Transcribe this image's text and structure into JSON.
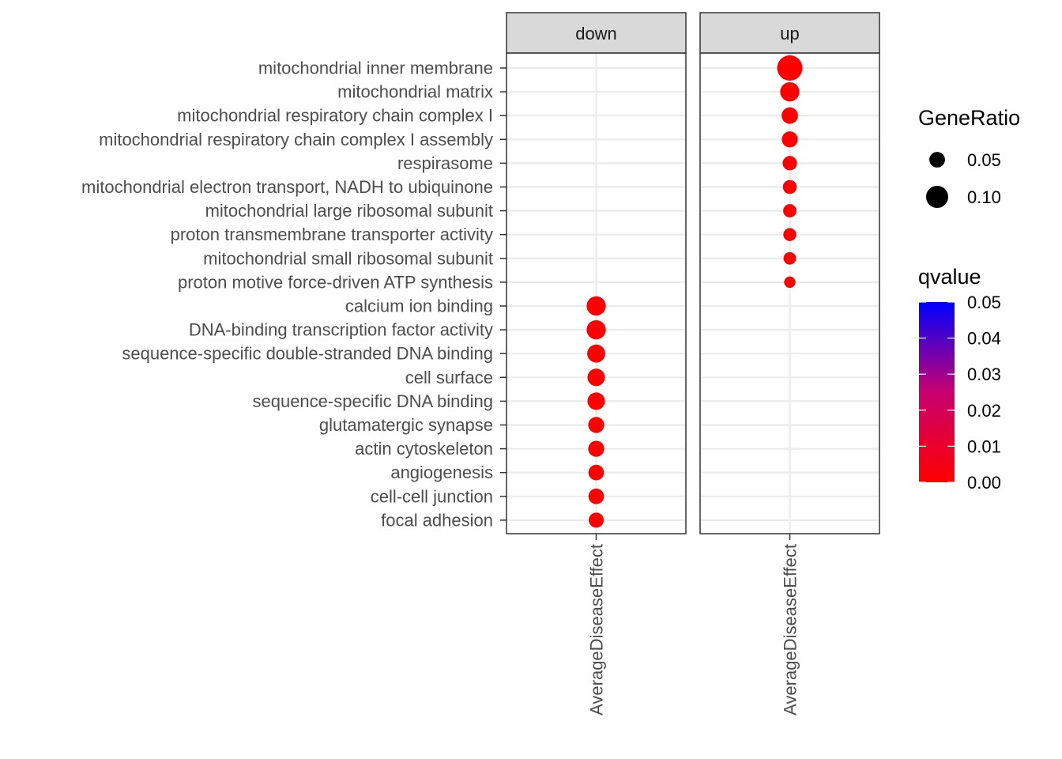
{
  "chart_data": {
    "type": "scatter",
    "facets": [
      "down",
      "up"
    ],
    "x_category": "AverageDiseaseEffect",
    "y_categories": [
      "mitochondrial inner membrane",
      "mitochondrial matrix",
      "mitochondrial respiratory chain complex I",
      "mitochondrial respiratory chain complex I assembly",
      "respirasome",
      "mitochondrial electron transport, NADH to ubiquinone",
      "mitochondrial large ribosomal subunit",
      "proton transmembrane transporter activity",
      "mitochondrial small ribosomal subunit",
      "proton motive force-driven ATP synthesis",
      "calcium ion binding",
      "DNA-binding transcription factor activity",
      "sequence-specific double-stranded DNA binding",
      "cell surface",
      "sequence-specific DNA binding",
      "glutamatergic synapse",
      "actin cytoskeleton",
      "angiogenesis",
      "cell-cell junction",
      "focal adhesion"
    ],
    "points": [
      {
        "facet": "up",
        "term": "mitochondrial inner membrane",
        "gene_ratio": 0.13,
        "qvalue": 0.0
      },
      {
        "facet": "up",
        "term": "mitochondrial matrix",
        "gene_ratio": 0.075,
        "qvalue": 0.0
      },
      {
        "facet": "up",
        "term": "mitochondrial respiratory chain complex I",
        "gene_ratio": 0.055,
        "qvalue": 0.0
      },
      {
        "facet": "up",
        "term": "mitochondrial respiratory chain complex I assembly",
        "gene_ratio": 0.052,
        "qvalue": 0.0
      },
      {
        "facet": "up",
        "term": "respirasome",
        "gene_ratio": 0.042,
        "qvalue": 0.0
      },
      {
        "facet": "up",
        "term": "mitochondrial electron transport, NADH to ubiquinone",
        "gene_ratio": 0.039,
        "qvalue": 0.0
      },
      {
        "facet": "up",
        "term": "mitochondrial large ribosomal subunit",
        "gene_ratio": 0.036,
        "qvalue": 0.0
      },
      {
        "facet": "up",
        "term": "proton transmembrane transporter activity",
        "gene_ratio": 0.034,
        "qvalue": 0.0
      },
      {
        "facet": "up",
        "term": "mitochondrial small ribosomal subunit",
        "gene_ratio": 0.032,
        "qvalue": 0.0
      },
      {
        "facet": "up",
        "term": "proton motive force-driven ATP synthesis",
        "gene_ratio": 0.026,
        "qvalue": 0.0
      },
      {
        "facet": "down",
        "term": "calcium ion binding",
        "gene_ratio": 0.075,
        "qvalue": 0.0
      },
      {
        "facet": "down",
        "term": "DNA-binding transcription factor activity",
        "gene_ratio": 0.075,
        "qvalue": 0.0
      },
      {
        "facet": "down",
        "term": "sequence-specific double-stranded DNA binding",
        "gene_ratio": 0.066,
        "qvalue": 0.0
      },
      {
        "facet": "down",
        "term": "cell surface",
        "gene_ratio": 0.062,
        "qvalue": 0.0
      },
      {
        "facet": "down",
        "term": "sequence-specific DNA binding",
        "gene_ratio": 0.062,
        "qvalue": 0.0
      },
      {
        "facet": "down",
        "term": "glutamatergic synapse",
        "gene_ratio": 0.052,
        "qvalue": 0.0
      },
      {
        "facet": "down",
        "term": "actin cytoskeleton",
        "gene_ratio": 0.052,
        "qvalue": 0.0
      },
      {
        "facet": "down",
        "term": "angiogenesis",
        "gene_ratio": 0.049,
        "qvalue": 0.0
      },
      {
        "facet": "down",
        "term": "cell-cell junction",
        "gene_ratio": 0.049,
        "qvalue": 0.0
      },
      {
        "facet": "down",
        "term": "focal adhesion",
        "gene_ratio": 0.046,
        "qvalue": 0.0
      }
    ],
    "size_legend": {
      "title": "GeneRatio",
      "breaks": [
        0.05,
        0.1
      ],
      "labels": [
        "0.05",
        "0.10"
      ]
    },
    "color_legend": {
      "title": "qvalue",
      "low_color": "#ff0000",
      "high_color": "#0000ff",
      "limits": [
        0.0,
        0.05
      ],
      "breaks": [
        0.05,
        0.04,
        0.03,
        0.02,
        0.01,
        0.0
      ],
      "labels": [
        "0.05",
        "0.04",
        "0.03",
        "0.02",
        "0.01",
        "0.00"
      ]
    },
    "grid": true,
    "legend_position": "right"
  }
}
